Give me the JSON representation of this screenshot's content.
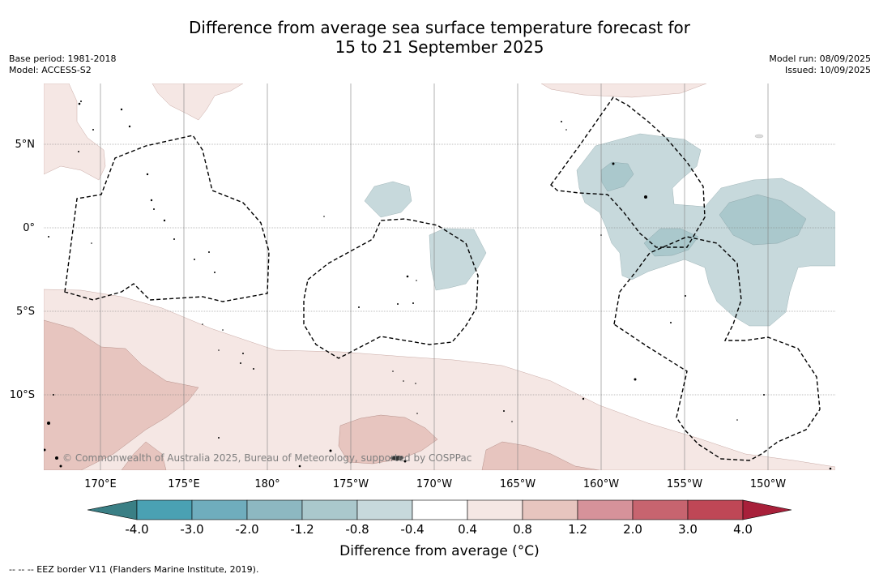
{
  "title": {
    "line1": "Difference from average sea surface temperature forecast for",
    "line2": "15 to 21 September 2025"
  },
  "meta": {
    "base_period": "Base period: 1981-2018",
    "model": "Model: ACCESS-S2",
    "model_run": "Model run: 08/09/2025",
    "issued": "Issued: 10/09/2025"
  },
  "map": {
    "lat_labels": [
      "5°N",
      "0°",
      "5°S",
      "10°S"
    ],
    "lon_labels": [
      "170°E",
      "175°E",
      "180°",
      "175°W",
      "170°W",
      "165°W",
      "160°W",
      "155°W",
      "150°W"
    ],
    "copyright": "© Commonwealth of Australia 2025, Bureau of Meteorology, supported by COSPPac"
  },
  "colorbar": {
    "ticks": [
      "-4.0",
      "-3.0",
      "-2.0",
      "-1.2",
      "-0.8",
      "-0.4",
      "0.4",
      "0.8",
      "1.2",
      "2.0",
      "3.0",
      "4.0"
    ],
    "colors": {
      "under": "#3a7f85",
      "bins": [
        "#4aa1b3",
        "#6fadbd",
        "#8db8c1",
        "#aac8cc",
        "#c7d9dc",
        "#ffffff",
        "#f5e7e4",
        "#e7c5bf",
        "#d6929a",
        "#c7646f",
        "#bf4756"
      ],
      "over": "#a8203a"
    },
    "label": "Difference from average (°C)"
  },
  "footnote": "--  --  -- EEZ border V11 (Flanders Marine Institute, 2019)."
}
